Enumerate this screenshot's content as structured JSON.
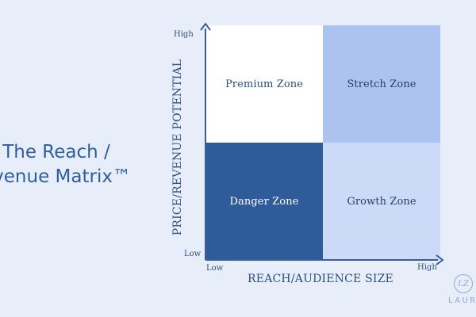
{
  "title": {
    "line1": "The Reach /",
    "line2": "evenue Matrix™"
  },
  "matrix": {
    "quadrants": {
      "top_left": "Premium Zone",
      "top_right": "Stretch Zone",
      "bottom_left": "Danger Zone",
      "bottom_right": "Growth Zone"
    },
    "y_axis": {
      "label": "PRICE/REVENUE POTENTIAL",
      "high": "High",
      "low": "Low"
    },
    "x_axis": {
      "label": "REACH/AUDIENCE SIZE",
      "low": "Low",
      "high": "High"
    }
  },
  "brand": {
    "mark": "LZ",
    "name": "LAURA Z"
  },
  "colors": {
    "background": "#e8eef9",
    "premium": "#ffffff",
    "stretch": "#adc3ef",
    "danger": "#2e5b99",
    "growth": "#cadaf7",
    "axis": "#3a5f96",
    "text": "#2c4f7f"
  }
}
